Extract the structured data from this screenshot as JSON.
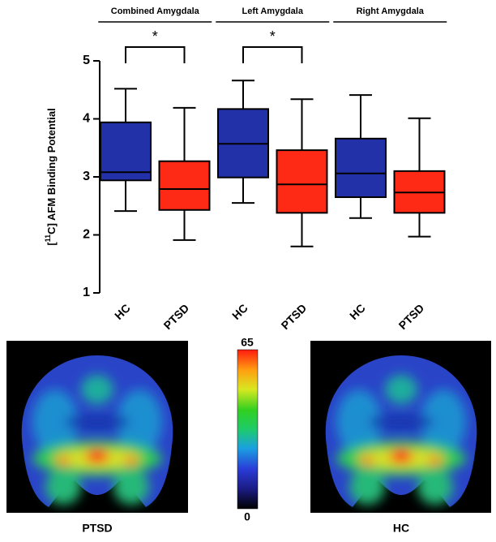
{
  "chart_data": {
    "type": "box",
    "ylabel": {
      "prefix": "[",
      "superscript": "11",
      "rest": "C] AFM Binding Potential"
    },
    "groups": [
      {
        "label": "Combined Amygdala",
        "annotation": "*"
      },
      {
        "label": "Left Amygdala",
        "annotation": "*"
      },
      {
        "label": "Right Amygdala"
      }
    ],
    "categories": [
      "HC",
      "PTSD",
      "HC",
      "PTSD",
      "HC",
      "PTSD"
    ],
    "box_colors": [
      "#2231a8",
      "#ff2a16",
      "#2231a8",
      "#ff2a16",
      "#2231a8",
      "#ff2a16"
    ],
    "boxes": [
      {
        "low": 2.41,
        "q1": 2.94,
        "median": 3.08,
        "q3": 3.94,
        "high": 4.52
      },
      {
        "low": 1.91,
        "q1": 2.43,
        "median": 2.79,
        "q3": 3.27,
        "high": 4.19
      },
      {
        "low": 2.55,
        "q1": 2.99,
        "median": 3.57,
        "q3": 4.17,
        "high": 4.66
      },
      {
        "low": 1.8,
        "q1": 2.38,
        "median": 2.87,
        "q3": 3.46,
        "high": 4.34
      },
      {
        "low": 2.29,
        "q1": 2.65,
        "median": 3.06,
        "q3": 3.66,
        "high": 4.41
      },
      {
        "low": 1.97,
        "q1": 2.38,
        "median": 2.73,
        "q3": 3.1,
        "high": 4.01
      }
    ],
    "ylim": [
      1,
      5
    ],
    "yticks": [
      1,
      2,
      3,
      4,
      5
    ]
  },
  "images": [
    {
      "label": "PTSD"
    },
    {
      "label": "HC"
    }
  ],
  "colorbar": {
    "min": 0,
    "max": 65
  }
}
